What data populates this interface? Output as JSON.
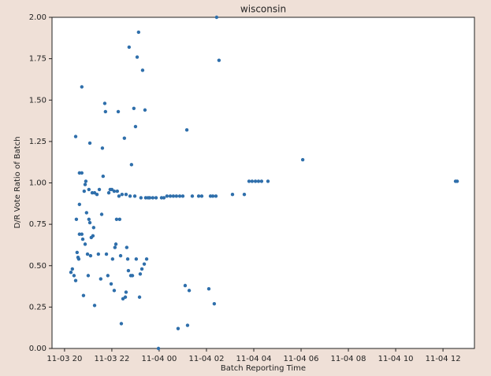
{
  "chart_data": {
    "type": "scatter",
    "title": "wisconsin",
    "x_label": "Batch Reporting Time",
    "y_label": "D/R Vote Ratio of Batch",
    "color": "#2f6fab",
    "x": [
      20.27,
      20.33,
      20.4,
      20.47,
      20.47,
      20.5,
      20.53,
      20.57,
      20.6,
      20.63,
      20.63,
      20.63,
      20.73,
      20.73,
      20.73,
      20.77,
      20.8,
      20.83,
      20.87,
      20.87,
      20.9,
      20.93,
      20.97,
      21.0,
      21.03,
      21.03,
      21.07,
      21.07,
      21.1,
      21.13,
      21.17,
      21.2,
      21.23,
      21.27,
      21.27,
      21.37,
      21.43,
      21.47,
      21.53,
      21.57,
      21.6,
      21.63,
      21.7,
      21.73,
      21.77,
      21.83,
      21.87,
      21.93,
      21.97,
      22.0,
      22.03,
      22.1,
      22.1,
      22.13,
      22.17,
      22.2,
      22.23,
      22.27,
      22.3,
      22.33,
      22.37,
      22.4,
      22.43,
      22.47,
      22.53,
      22.57,
      22.6,
      22.6,
      22.63,
      22.67,
      22.7,
      22.73,
      22.77,
      22.8,
      22.83,
      22.87,
      22.93,
      22.97,
      23.0,
      23.03,
      23.07,
      23.13,
      23.17,
      23.2,
      23.23,
      23.27,
      23.3,
      23.37,
      23.4,
      23.43,
      23.47,
      23.53,
      23.6,
      23.73,
      23.87,
      23.97,
      24.1,
      24.2,
      24.33,
      24.47,
      24.6,
      24.73,
      24.8,
      24.87,
      25.0,
      25.1,
      25.17,
      25.2,
      25.27,
      25.4,
      25.67,
      25.8,
      26.1,
      26.17,
      26.27,
      26.33,
      26.4,
      26.43,
      26.53,
      27.1,
      27.6,
      27.8,
      27.93,
      28.07,
      28.2,
      28.33,
      28.6,
      30.07,
      36.53,
      36.6
    ],
    "values": [
      0.46,
      0.48,
      0.44,
      0.41,
      1.28,
      0.78,
      0.58,
      0.55,
      0.54,
      0.69,
      0.87,
      1.06,
      1.06,
      1.58,
      0.69,
      0.66,
      0.32,
      0.95,
      0.99,
      0.63,
      1.01,
      0.82,
      0.57,
      0.44,
      0.96,
      0.78,
      1.24,
      0.76,
      0.56,
      0.67,
      0.94,
      0.68,
      0.73,
      0.26,
      0.94,
      0.93,
      0.57,
      0.96,
      0.42,
      0.81,
      1.21,
      1.04,
      1.48,
      1.43,
      0.57,
      0.44,
      0.94,
      0.96,
      0.39,
      0.96,
      0.54,
      0.35,
      0.95,
      0.61,
      0.63,
      0.78,
      0.95,
      1.43,
      0.92,
      0.78,
      0.56,
      0.15,
      0.93,
      0.3,
      1.27,
      0.31,
      0.34,
      0.93,
      0.61,
      0.54,
      0.47,
      1.82,
      0.92,
      0.44,
      1.11,
      0.44,
      1.45,
      0.92,
      1.34,
      0.54,
      1.76,
      1.91,
      0.31,
      0.45,
      0.91,
      0.48,
      1.68,
      0.51,
      1.44,
      0.91,
      0.54,
      0.91,
      0.91,
      0.91,
      0.91,
      0,
      0.91,
      0.91,
      0.92,
      0.92,
      0.92,
      0.92,
      0.12,
      0.92,
      0.92,
      0.38,
      1.32,
      0.14,
      0.35,
      0.92,
      0.92,
      0.92,
      0.36,
      0.92,
      0.92,
      0.27,
      0.92,
      2.0,
      1.74,
      0.93,
      0.93,
      1.01,
      1.01,
      1.01,
      1.01,
      1.01,
      1.01,
      1.14,
      1.01,
      1.01
    ],
    "xlim": [
      19.47,
      37.33
    ],
    "xticks": [
      {
        "value": 20,
        "label": "11-03 20"
      },
      {
        "value": 22,
        "label": "11-03 22"
      },
      {
        "value": 24,
        "label": "11-04 00"
      },
      {
        "value": 26,
        "label": "11-04 02"
      },
      {
        "value": 28,
        "label": "11-04 04"
      },
      {
        "value": 30,
        "label": "11-04 06"
      },
      {
        "value": 32,
        "label": "11-04 08"
      },
      {
        "value": 34,
        "label": "11-04 10"
      },
      {
        "value": 36,
        "label": "11-04 12"
      }
    ],
    "ylim": [
      0,
      2
    ],
    "yticks": [
      {
        "value": 0,
        "label": "0.00"
      },
      {
        "value": 0.25,
        "label": "0.25"
      },
      {
        "value": 0.5,
        "label": "0.50"
      },
      {
        "value": 0.75,
        "label": "0.75"
      },
      {
        "value": 1,
        "label": "1.00"
      },
      {
        "value": 1.25,
        "label": "1.25"
      },
      {
        "value": 1.5,
        "label": "1.50"
      },
      {
        "value": 1.75,
        "label": "1.75"
      },
      {
        "value": 2,
        "label": "2.00"
      }
    ],
    "grid": false
  }
}
